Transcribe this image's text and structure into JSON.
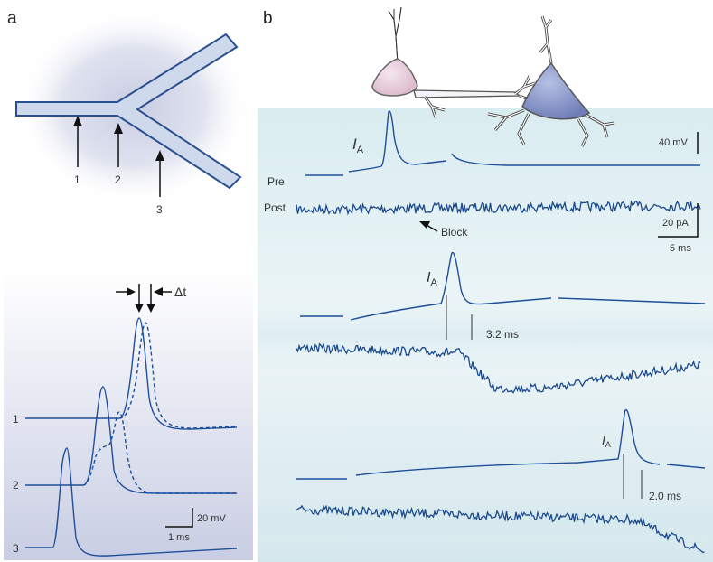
{
  "panel_a": {
    "letter": "a",
    "arrow_labels": [
      "1",
      "2",
      "3"
    ],
    "trace_labels": [
      "1",
      "2",
      "3"
    ],
    "delta_label": "Δt",
    "scale_y": "20 mV",
    "scale_x": "1 ms"
  },
  "panel_b": {
    "letter": "b",
    "pre_label": "Pre",
    "post_label": "Post",
    "ia_symbol": "I",
    "ia_subscript": "A",
    "block_label": "Block",
    "scale_v": "40 mV",
    "scale_i": "20 pA",
    "scale_t": "5 ms",
    "latency_1": "3.2 ms",
    "latency_2": "2.0 ms"
  },
  "colors": {
    "trace": "#1f4f9a",
    "axon_fill": "#cfd9ec",
    "axon_stroke": "#2a4f8f",
    "pre_cell": "#e9cfdc",
    "post_cell": "#8e9ccc"
  }
}
